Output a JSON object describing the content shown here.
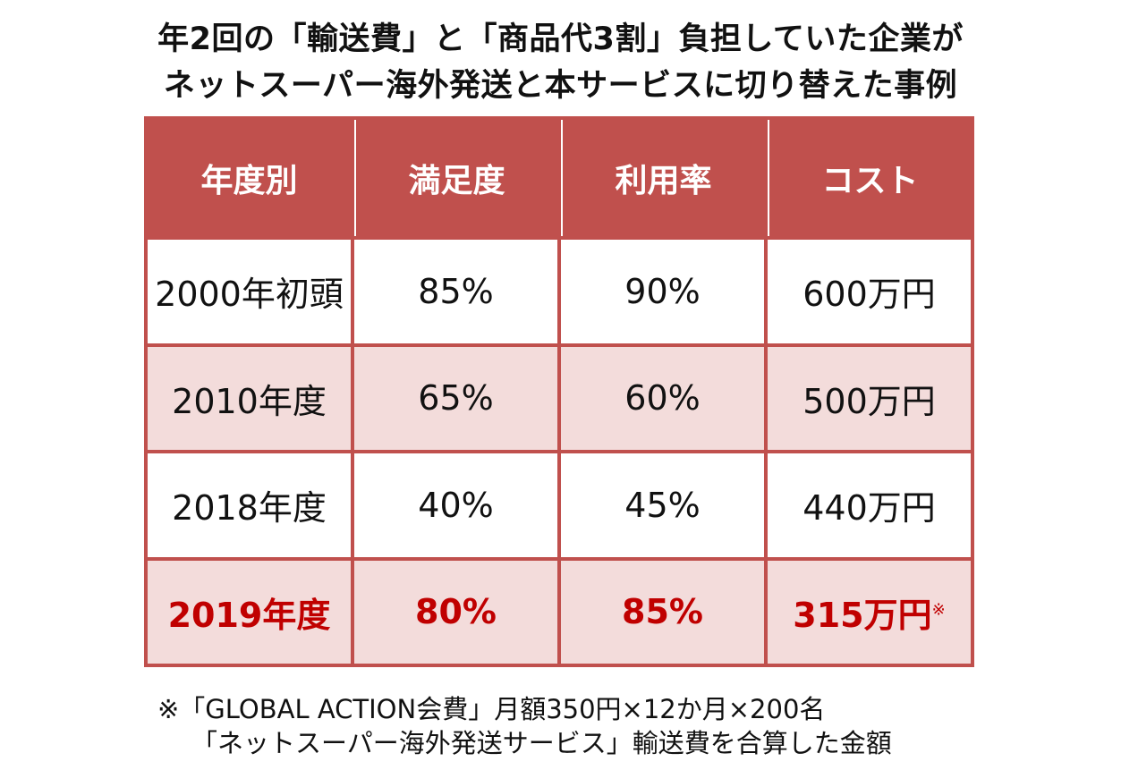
{
  "title": {
    "line1": "年2回の「輸送費」と「商品代3割」負担していた企業が",
    "line2": "ネットスーパー海外発送と本サービスに切り替えた事例"
  },
  "table": {
    "headers": [
      "年度別",
      "満足度",
      "利用率",
      "コスト"
    ],
    "rows": [
      {
        "year": "2000年初頭",
        "satisfaction": "85%",
        "usage": "90%",
        "cost": "600万円"
      },
      {
        "year": "2010年度",
        "satisfaction": "65%",
        "usage": "60%",
        "cost": "500万円"
      },
      {
        "year": "2018年度",
        "satisfaction": "40%",
        "usage": "45%",
        "cost": "440万円"
      },
      {
        "year": "2019年度",
        "satisfaction": "80%",
        "usage": "85%",
        "cost": "315万円",
        "note": "※"
      }
    ]
  },
  "footnote": {
    "line1": "※「GLOBAL ACTION会費」月額350円×12か月×200名",
    "line2": "「ネットスーパー海外発送サービス」輸送費を合算した金額"
  },
  "colors": {
    "header_bg": "#c0504d",
    "alt_row_bg": "#f3dcdb",
    "highlight_text": "#c00000"
  }
}
